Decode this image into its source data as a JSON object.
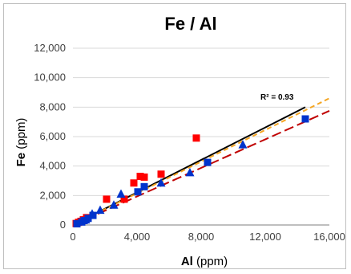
{
  "chart_data": {
    "type": "scatter",
    "title": "Fe / Al",
    "xlabel": {
      "bold": "Al",
      "unit": " (ppm)"
    },
    "ylabel": {
      "bold": "Fe",
      "unit": " (ppm)"
    },
    "xlim": [
      0,
      16000
    ],
    "ylim": [
      0,
      12000
    ],
    "xticks": [
      0,
      4000,
      8000,
      12000,
      16000
    ],
    "xtick_labels": [
      "0",
      "4,000",
      "8,000",
      "12,000",
      "16,000"
    ],
    "yticks": [
      0,
      2000,
      4000,
      6000,
      8000,
      10000,
      12000
    ],
    "ytick_labels": [
      "0",
      "2,000",
      "4,000",
      "6,000",
      "8,000",
      "10,000",
      "12,000"
    ],
    "grid": {
      "horizontal": true,
      "vertical": false
    },
    "annotation": "R² = 0.93",
    "series": [
      {
        "marker": "square",
        "color": "#ff0000",
        "points": [
          [
            200,
            100
          ],
          [
            350,
            180
          ],
          [
            500,
            250
          ],
          [
            650,
            350
          ],
          [
            850,
            500
          ],
          [
            2100,
            1750
          ],
          [
            3200,
            1750
          ],
          [
            3800,
            2850
          ],
          [
            4200,
            3300
          ],
          [
            4450,
            3250
          ],
          [
            5500,
            3450
          ],
          [
            7700,
            5900
          ]
        ]
      },
      {
        "marker": "square",
        "color": "#0033cc",
        "points": [
          [
            250,
            80
          ],
          [
            550,
            200
          ],
          [
            700,
            300
          ],
          [
            950,
            450
          ],
          [
            1250,
            650
          ],
          [
            4050,
            2250
          ],
          [
            4450,
            2600
          ],
          [
            8400,
            4250
          ],
          [
            14500,
            7200
          ]
        ]
      },
      {
        "marker": "triangle",
        "color": "#0033cc",
        "points": [
          [
            800,
            350
          ],
          [
            1200,
            750
          ],
          [
            1700,
            1000
          ],
          [
            2550,
            1350
          ],
          [
            3000,
            2100
          ],
          [
            5500,
            2850
          ],
          [
            7300,
            3550
          ],
          [
            10600,
            5450
          ]
        ]
      }
    ],
    "trendlines": [
      {
        "color": "#000000",
        "dash": "solid",
        "x": [
          0,
          14500
        ],
        "y": [
          0,
          8000
        ]
      },
      {
        "color": "#f5a623",
        "dash": "short",
        "x": [
          0,
          16000
        ],
        "y": [
          0,
          8600
        ]
      },
      {
        "color": "#c00000",
        "dash": "long",
        "x": [
          0,
          16000
        ],
        "y": [
          0,
          7750
        ]
      }
    ]
  }
}
